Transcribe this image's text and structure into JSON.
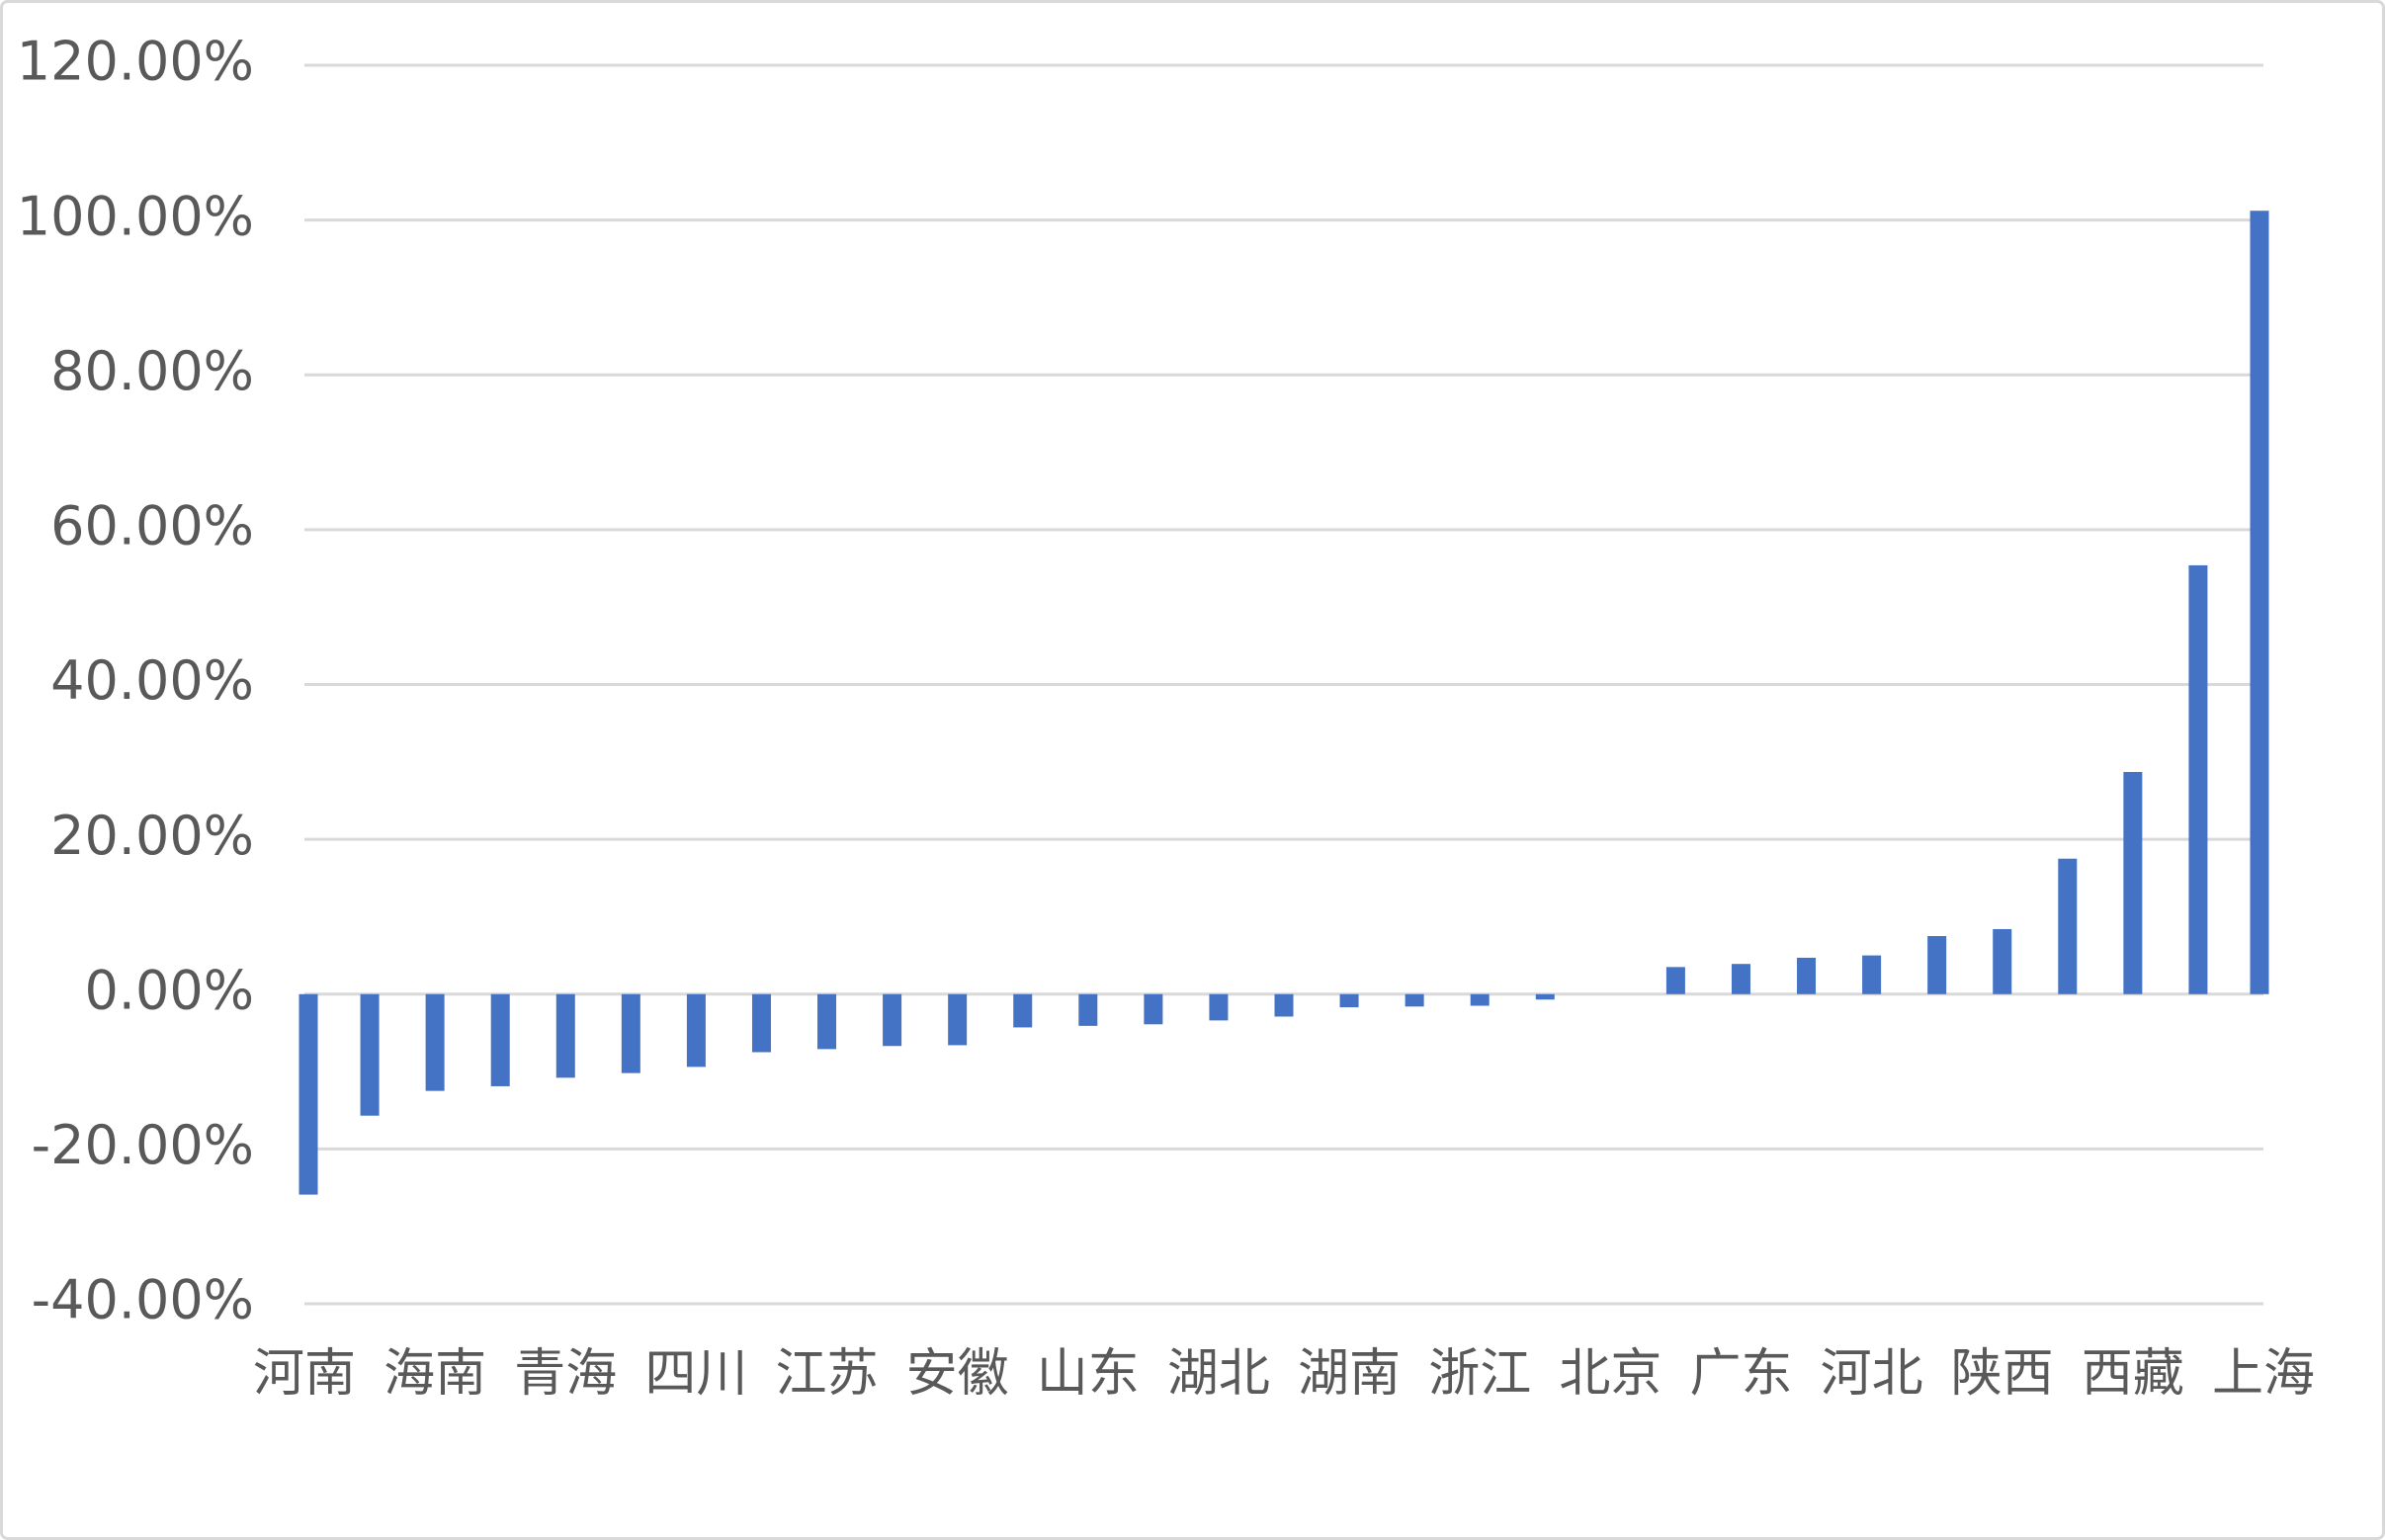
{
  "chart_data": {
    "type": "bar",
    "categories": [
      "河南",
      null,
      "海南",
      null,
      "青海",
      null,
      "四川",
      null,
      "江苏",
      null,
      "安徽",
      null,
      "山东",
      null,
      "湖北",
      null,
      "湖南",
      null,
      "浙江",
      null,
      "北京",
      null,
      "广东",
      null,
      "河北",
      null,
      "陕西",
      null,
      "西藏",
      null,
      "上海"
    ],
    "values": [
      -25.9,
      -15.7,
      -12.5,
      -11.9,
      -10.8,
      -10.2,
      -9.4,
      -7.5,
      -7.1,
      -6.7,
      -6.6,
      -4.3,
      -4.1,
      -3.9,
      -3.4,
      -2.9,
      -1.7,
      -1.6,
      -1.5,
      -0.7,
      0,
      3.5,
      3.9,
      4.7,
      5.0,
      7.5,
      8.4,
      17.5,
      28.7,
      55.4,
      101.2
    ],
    "color": "#4472c4",
    "ylim": [
      -40,
      120
    ],
    "yticks": [
      {
        "value": -40,
        "label": "-40.00%"
      },
      {
        "value": -20,
        "label": "-20.00%"
      },
      {
        "value": 0,
        "label": "0.00%"
      },
      {
        "value": 20,
        "label": "20.00%"
      },
      {
        "value": 40,
        "label": "40.00%"
      },
      {
        "value": 60,
        "label": "60.00%"
      },
      {
        "value": 80,
        "label": "80.00%"
      },
      {
        "value": 100,
        "label": "100.00%"
      },
      {
        "value": 120,
        "label": "120.00%"
      }
    ],
    "grid": true
  }
}
